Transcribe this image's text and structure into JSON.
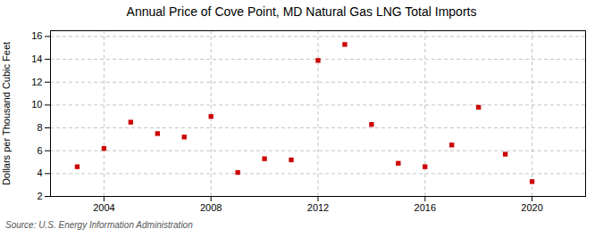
{
  "chart_data": {
    "type": "scatter",
    "title": "Annual Price of Cove Point, MD Natural Gas LNG Total Imports",
    "ylabel": "Dollars per Thousand Cubic Feet",
    "annotation": "Source: U.S. Energy Information Administration",
    "x": [
      2003,
      2004,
      2005,
      2006,
      2007,
      2008,
      2009,
      2010,
      2011,
      2012,
      2013,
      2014,
      2015,
      2016,
      2017,
      2018,
      2019,
      2020
    ],
    "values": [
      4.6,
      6.2,
      8.5,
      7.5,
      7.2,
      9.0,
      4.1,
      5.3,
      5.2,
      13.9,
      15.3,
      8.3,
      4.9,
      4.6,
      6.5,
      9.8,
      5.7,
      3.3
    ],
    "color": "#cc0000",
    "marker": "square",
    "xlim": [
      2002.0,
      2022.0
    ],
    "xticks": [
      2004,
      2008,
      2012,
      2016,
      2020
    ],
    "ylim": [
      2,
      16.5
    ],
    "yticks": [
      2,
      4,
      6,
      8,
      10,
      12,
      14,
      16
    ],
    "grid": true
  }
}
